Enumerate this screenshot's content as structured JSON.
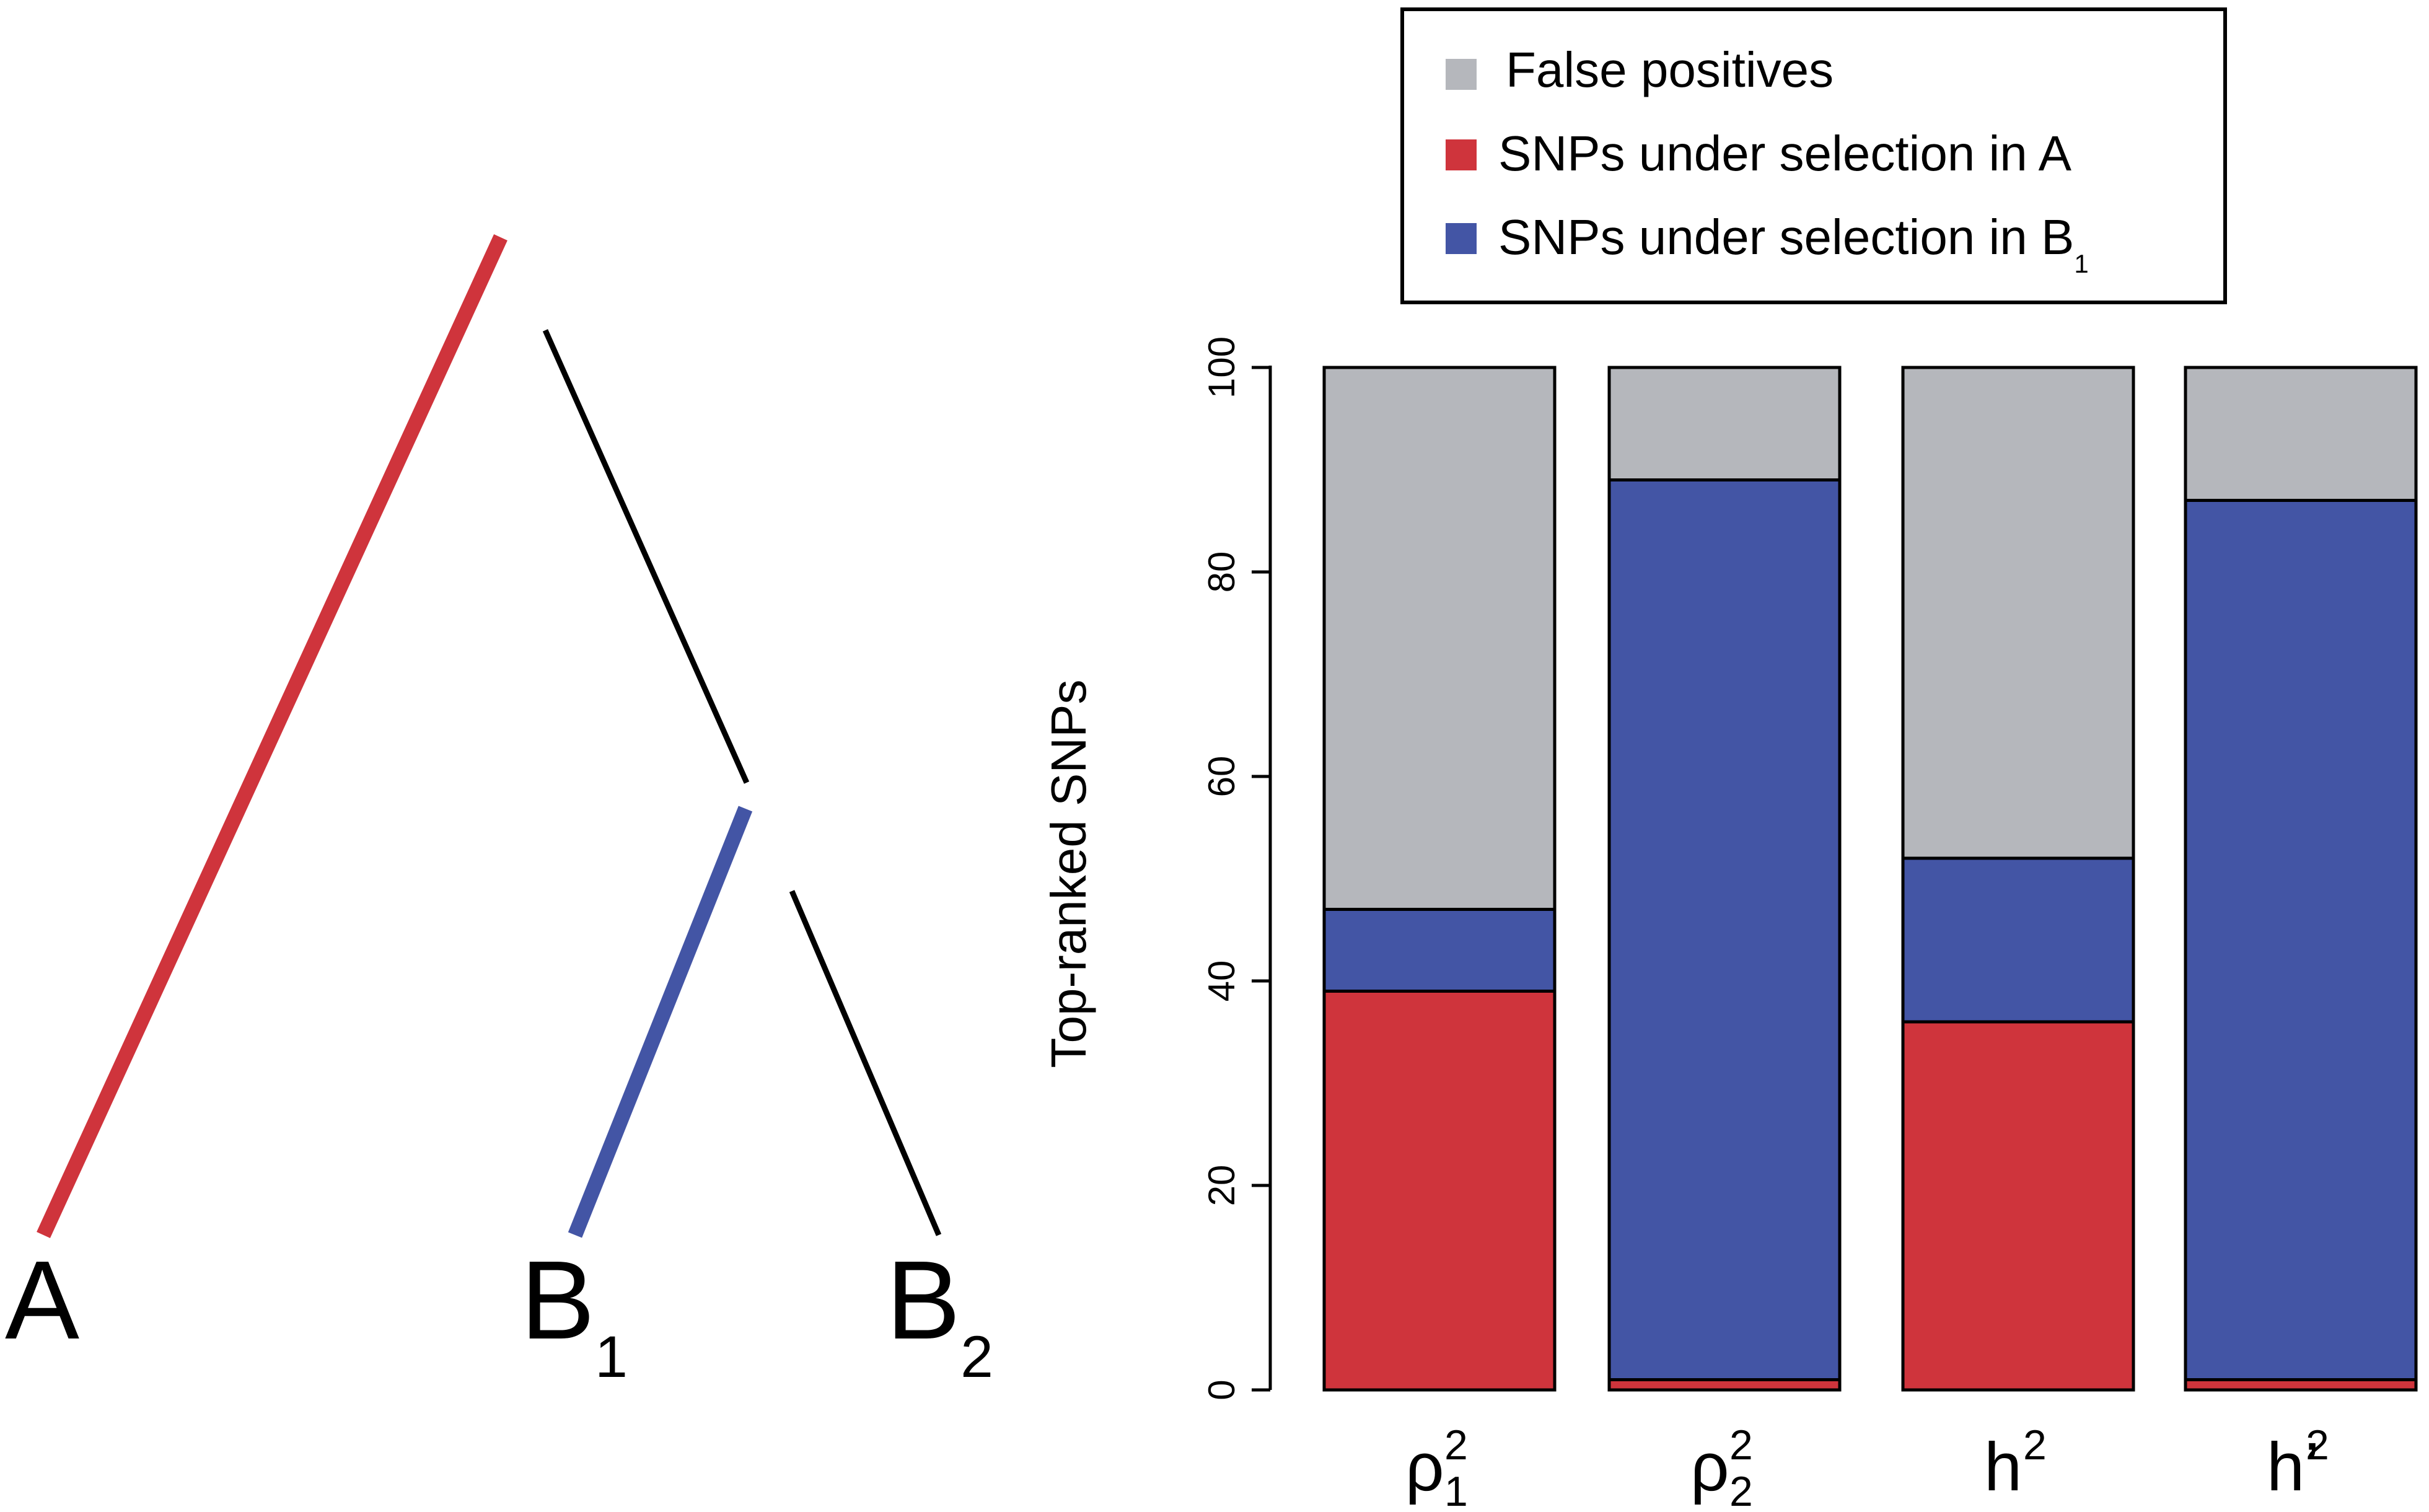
{
  "tree": {
    "leaves": [
      {
        "base": "A",
        "sub": ""
      },
      {
        "base": "B",
        "sub": "1"
      },
      {
        "base": "B",
        "sub": "2"
      }
    ],
    "colors": {
      "selection_A": "#cf343c",
      "selection_B1": "#4355a5",
      "neutral": "#000000"
    }
  },
  "chart_data": {
    "type": "bar",
    "stacked": true,
    "categories": [
      {
        "base": "ρ",
        "sup": "2",
        "sub": "1"
      },
      {
        "base": "ρ",
        "sup": "2",
        "sub": "2"
      },
      {
        "base": "h",
        "sup": "2",
        "sub": ""
      },
      {
        "base": "h’",
        "sup": "2",
        "sub": ""
      }
    ],
    "series": [
      {
        "name": "SNPs under selection in A",
        "values": [
          39,
          1,
          36,
          1
        ],
        "color": "#cf343c"
      },
      {
        "name": "SNPs under selection in B",
        "name_sub": "1",
        "values": [
          8,
          88,
          16,
          86
        ],
        "color": "#4355a5"
      },
      {
        "name": "False positives",
        "values": [
          53,
          11,
          48,
          13
        ],
        "color": "#b5b7bc"
      }
    ],
    "legend_order": [
      2,
      0,
      1
    ],
    "legend_position": "top",
    "ylabel": "Top-ranked SNPs",
    "ylim": [
      0,
      100
    ],
    "yticks": [
      "0",
      "20",
      "40",
      "60",
      "80",
      "100"
    ],
    "grid": false
  }
}
